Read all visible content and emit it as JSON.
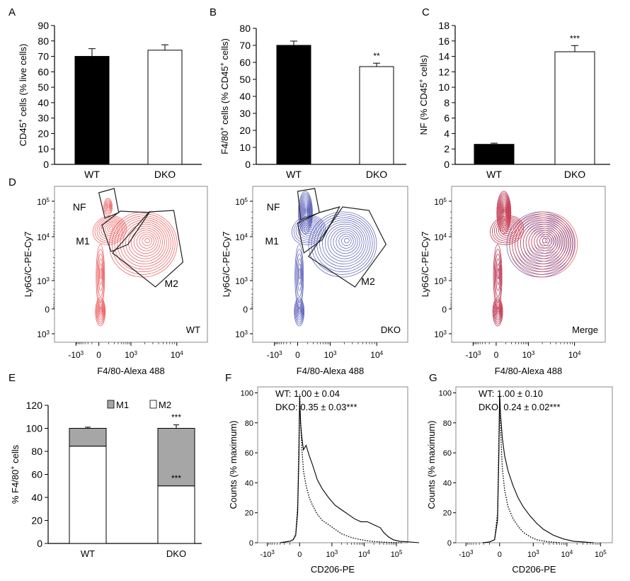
{
  "panels": {
    "A": {
      "letter": "A",
      "chart_data": {
        "type": "bar",
        "categories": [
          "WT",
          "DKO"
        ],
        "values": [
          70,
          74
        ],
        "errors": [
          5,
          3.5
        ],
        "ylabel_main": "CD45",
        "ylabel_sup": "+",
        "ylabel_rest": " cells (% live cells)",
        "ylim": [
          0,
          90
        ],
        "yticks": [
          "0",
          "10",
          "20",
          "30",
          "40",
          "50",
          "60",
          "70",
          "80",
          "90"
        ],
        "fills": [
          "#000000",
          "#ffffff"
        ],
        "significance": [
          "",
          ""
        ]
      }
    },
    "B": {
      "letter": "B",
      "chart_data": {
        "type": "bar",
        "categories": [
          "WT",
          "DKO"
        ],
        "values": [
          70,
          57.5
        ],
        "errors": [
          2.5,
          2
        ],
        "ylabel_main": "F4/80",
        "ylabel_sup": "+",
        "ylabel_rest": " cells (% CD45",
        "ylabel_sup2": "+",
        "ylabel_end": " cells)",
        "ylim": [
          0,
          80
        ],
        "yticks": [
          "0",
          "10",
          "20",
          "30",
          "40",
          "50",
          "60",
          "70",
          "80"
        ],
        "fills": [
          "#000000",
          "#ffffff"
        ],
        "significance": [
          "",
          "**"
        ]
      }
    },
    "C": {
      "letter": "C",
      "chart_data": {
        "type": "bar",
        "categories": [
          "WT",
          "DKO"
        ],
        "values": [
          2.6,
          14.6
        ],
        "errors": [
          0.15,
          0.8
        ],
        "ylabel_main": "NF (% CD45",
        "ylabel_sup": "+",
        "ylabel_rest": " cells)",
        "ylim": [
          0,
          18
        ],
        "yticks": [
          "0",
          "2",
          "4",
          "6",
          "8",
          "10",
          "12",
          "14",
          "16",
          "18"
        ],
        "fills": [
          "#000000",
          "#ffffff"
        ],
        "significance": [
          "",
          "***"
        ]
      }
    },
    "D": {
      "letter": "D",
      "plots": [
        {
          "corner_label": "WT",
          "gates": [
            "NF",
            "M1",
            "M2"
          ],
          "colors": [
            "#e8383a"
          ]
        },
        {
          "corner_label": "DKO",
          "gates": [
            "NF",
            "M1",
            "M2"
          ],
          "colors": [
            "#3a3fa8"
          ]
        },
        {
          "corner_label": "Merge",
          "gates": [],
          "colors": [
            "#3a3fa8",
            "#e8383a"
          ]
        }
      ],
      "ylabel": "Ly6G/C-PE-Cy7",
      "xlabel": "F4/80-Alexa 488",
      "yticks": [
        {
          "base": "10",
          "exp": "5"
        },
        {
          "base": "10",
          "exp": "4"
        },
        {
          "base": "10",
          "exp": "3"
        },
        {
          "base": "0",
          "exp": ""
        },
        {
          "base": "10",
          "exp": "3"
        }
      ],
      "xticks": [
        {
          "base": "-10",
          "exp": "3"
        },
        {
          "base": "0",
          "exp": ""
        },
        {
          "base": "10",
          "exp": "3"
        },
        {
          "base": "10",
          "exp": "4"
        }
      ]
    },
    "E": {
      "letter": "E",
      "chart_data": {
        "type": "bar",
        "stacked": true,
        "categories": [
          "WT",
          "DKO"
        ],
        "series": [
          {
            "name": "M2",
            "values": [
              84.5,
              50
            ],
            "errors": [
              3,
              2
            ],
            "fill": "#ffffff"
          },
          {
            "name": "M1",
            "values": [
              15.5,
              50
            ],
            "errors": [
              1,
              3
            ],
            "fill": "#a6a6a6"
          }
        ],
        "ylabel_main": "% F4/80",
        "ylabel_sup": "+",
        "ylabel_rest": " cells",
        "ylim": [
          0,
          120
        ],
        "yticks": [
          "0",
          "20",
          "40",
          "60",
          "80",
          "100",
          "120"
        ],
        "significance": {
          "DKO_top": "***",
          "DKO_mid": "***"
        },
        "legend": [
          {
            "name": "M1",
            "fill": "#a6a6a6"
          },
          {
            "name": "M2",
            "fill": "#ffffff"
          }
        ]
      }
    },
    "F": {
      "letter": "F",
      "chart_data": {
        "type": "line",
        "ylabel": "Counts (% maximum)",
        "xlabel": "CD206-PE",
        "yticks": [
          "0",
          "20",
          "40",
          "60",
          "80",
          "100"
        ],
        "xticks": [
          {
            "base": "-10",
            "exp": "3"
          },
          {
            "base": "0",
            "exp": ""
          },
          {
            "base": "10",
            "exp": "3"
          },
          {
            "base": "10",
            "exp": "4"
          },
          {
            "base": "10",
            "exp": "5"
          }
        ],
        "annotation": [
          "WT: 1.00 ± 0.04",
          "DKO: 0.35 ± 0.03***"
        ],
        "series": [
          {
            "name": "WT",
            "style": "solid",
            "x": [
              -0.6,
              -0.45,
              -0.3,
              -0.2,
              -0.12,
              -0.06,
              -0.02,
              0.0,
              0.03,
              0.07,
              0.12,
              0.2,
              0.3,
              0.4,
              0.55,
              0.7,
              0.9,
              1.1,
              1.3,
              1.5,
              1.7,
              1.9,
              2.1,
              2.3,
              2.5,
              2.6,
              2.75,
              2.9,
              3.1,
              3.4,
              3.7
            ],
            "y": [
              0,
              0.5,
              1,
              2,
              5,
              20,
              60,
              97,
              80,
              70,
              62,
              65,
              58,
              52,
              42,
              36,
              30,
              25,
              22,
              19,
              16,
              14,
              14,
              12,
              10,
              7,
              4,
              2,
              1,
              0.5,
              0
            ]
          },
          {
            "name": "DKO",
            "style": "dotted",
            "x": [
              -0.6,
              -0.45,
              -0.3,
              -0.2,
              -0.12,
              -0.06,
              -0.02,
              0.0,
              0.03,
              0.07,
              0.12,
              0.2,
              0.3,
              0.4,
              0.55,
              0.7,
              0.9,
              1.1,
              1.3,
              1.6,
              1.9,
              2.2,
              2.5,
              2.8,
              3.2
            ],
            "y": [
              0,
              0.5,
              1,
              2,
              6,
              25,
              70,
              99,
              82,
              62,
              48,
              38,
              30,
              25,
              19,
              15,
              12,
              9,
              6,
              3.5,
              2,
              1,
              0.5,
              0.2,
              0
            ]
          }
        ]
      }
    },
    "G": {
      "letter": "G",
      "chart_data": {
        "type": "line",
        "ylabel": "Counts (% maximum)",
        "xlabel": "CD206-PE",
        "yticks": [
          "0",
          "20",
          "40",
          "60",
          "80",
          "100"
        ],
        "xticks": [
          {
            "base": "-10",
            "exp": "3"
          },
          {
            "base": "0",
            "exp": ""
          },
          {
            "base": "10",
            "exp": "3"
          },
          {
            "base": "10",
            "exp": "4"
          },
          {
            "base": "10",
            "exp": "5"
          }
        ],
        "annotation": [
          "WT: 1.00 ± 0.10",
          "DKO: 0.24 ± 0.02***"
        ],
        "series": [
          {
            "name": "WT",
            "style": "solid",
            "x": [
              -0.5,
              -0.3,
              -0.15,
              -0.06,
              -0.02,
              0.0,
              0.03,
              0.08,
              0.15,
              0.25,
              0.4,
              0.55,
              0.7,
              0.9,
              1.1,
              1.3,
              1.6,
              1.9,
              2.2,
              2.5,
              2.8
            ],
            "y": [
              0,
              0.5,
              2,
              15,
              60,
              100,
              85,
              70,
              58,
              48,
              38,
              30,
              24,
              18,
              13,
              9,
              5,
              2.5,
              1,
              0.5,
              0
            ]
          },
          {
            "name": "DKO",
            "style": "dotted",
            "x": [
              -0.5,
              -0.3,
              -0.15,
              -0.06,
              -0.02,
              0.0,
              0.03,
              0.08,
              0.15,
              0.25,
              0.4,
              0.55,
              0.7,
              0.9,
              1.1,
              1.4,
              1.8
            ],
            "y": [
              0,
              0.5,
              2,
              20,
              70,
              98,
              75,
              50,
              35,
              24,
              16,
              11,
              7,
              4,
              2,
              0.8,
              0
            ]
          }
        ]
      }
    }
  }
}
